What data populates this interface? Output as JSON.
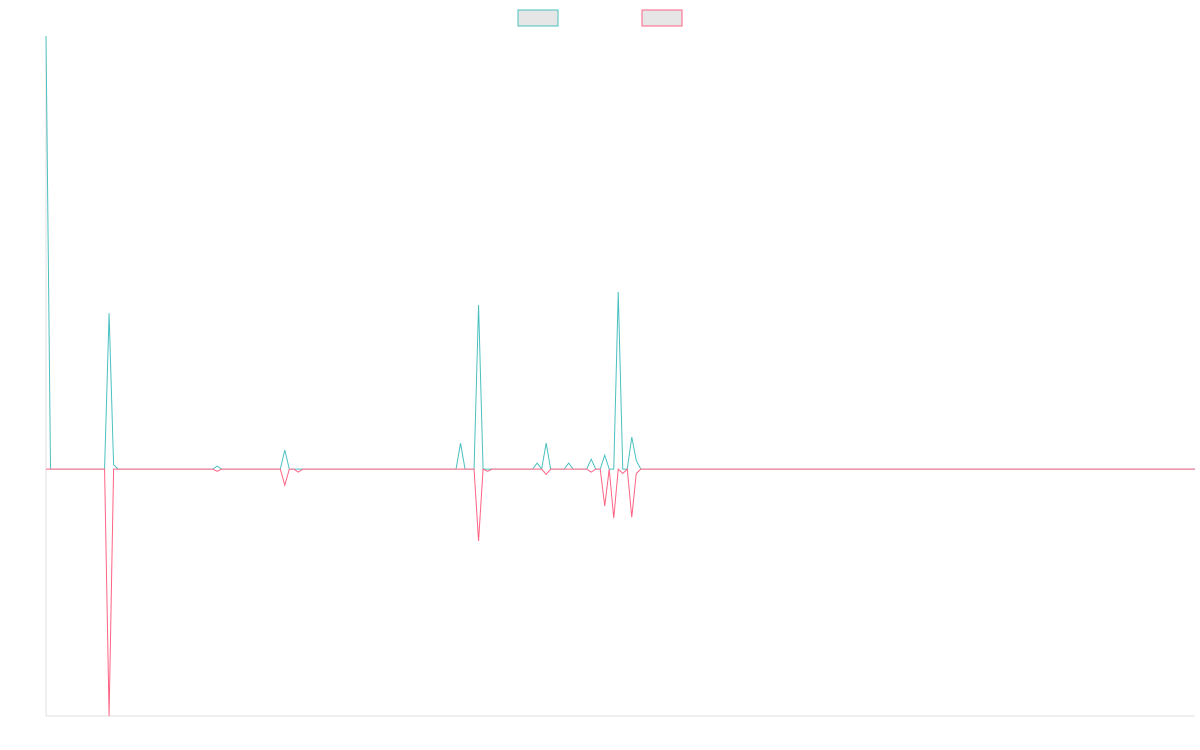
{
  "chart_data": {
    "type": "line",
    "x": [
      0,
      1,
      13,
      14,
      15,
      16,
      37,
      38,
      39,
      52,
      53,
      54,
      55,
      56,
      57,
      91,
      92,
      93,
      95,
      96,
      97,
      98,
      99,
      108,
      109,
      110,
      111,
      112,
      115,
      116,
      117,
      120,
      121,
      122,
      123,
      124,
      125,
      126,
      127,
      128,
      129,
      130,
      131,
      132,
      255
    ],
    "series": [
      {
        "color": "#4bc0c0",
        "values": [
          100,
          0,
          0,
          36,
          1,
          0,
          0,
          0.7,
          0,
          0,
          4.4,
          0,
          0,
          0,
          0,
          0,
          6,
          0,
          0,
          37.9,
          0,
          0,
          0,
          0,
          1.4,
          0,
          6,
          0,
          0,
          1.4,
          0,
          0,
          2.3,
          0,
          0,
          3.2,
          0,
          0,
          40.9,
          0,
          0,
          7.4,
          2,
          0,
          0
        ]
      },
      {
        "color": "#ff6384",
        "values": [
          0,
          0,
          0,
          -57,
          0,
          0,
          0,
          -0.5,
          0,
          0,
          -3.7,
          0,
          0,
          -0.7,
          0,
          0,
          0,
          0,
          0,
          -16.6,
          0,
          -0.5,
          0,
          0,
          0,
          0,
          -1.2,
          0,
          0,
          0,
          0,
          0,
          -0.7,
          0,
          0,
          -8.5,
          0,
          -11.3,
          0,
          -1,
          0,
          -11.1,
          -1,
          0,
          0
        ]
      }
    ],
    "xlim": [
      0,
      255
    ],
    "ylim": [
      -57,
      100
    ],
    "grid": false,
    "legend": "top"
  }
}
